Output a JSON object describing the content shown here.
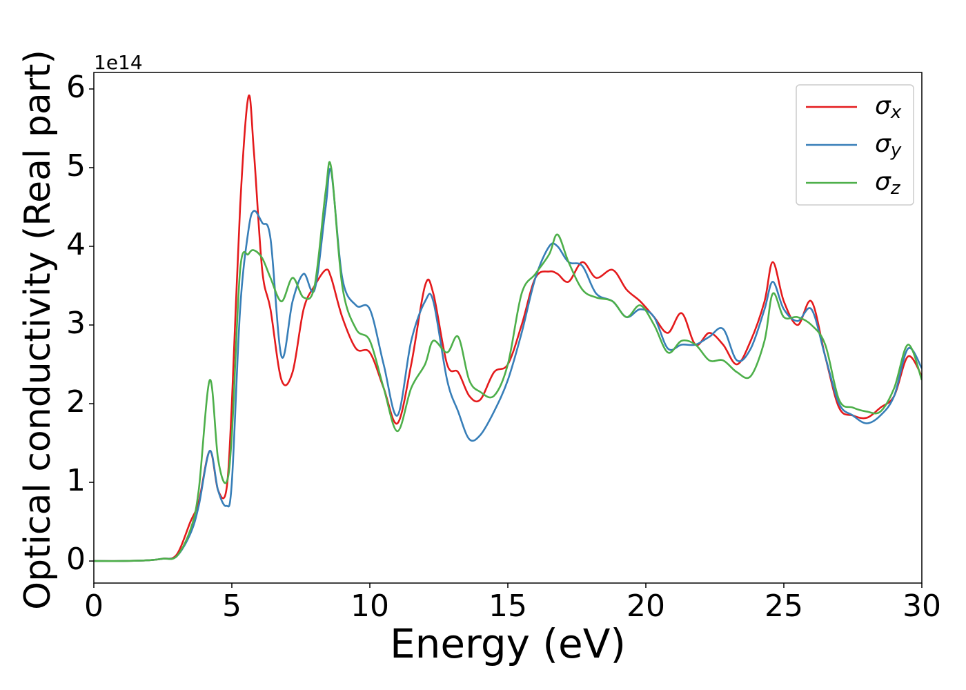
{
  "chart_data": {
    "type": "line",
    "xlabel": "Energy (eV)",
    "ylabel": "Optical conductivity (Real part)",
    "offset_text": "1e14",
    "x": [
      0,
      1,
      2,
      2.5,
      3,
      3.5,
      3.8,
      4.2,
      4.5,
      4.8,
      5,
      5.3,
      5.6,
      5.8,
      6.1,
      6.4,
      6.8,
      7.2,
      7.6,
      8,
      8.4,
      8.6,
      9,
      9.5,
      10,
      10.5,
      11,
      11.5,
      12,
      12.3,
      12.8,
      13.2,
      13.6,
      14,
      14.5,
      15,
      15.5,
      16,
      16.5,
      16.8,
      17.2,
      17.7,
      18.2,
      18.8,
      19.3,
      19.8,
      20.3,
      20.8,
      21.3,
      21.8,
      22.3,
      22.8,
      23.3,
      23.8,
      24.3,
      24.6,
      25,
      25.5,
      26,
      26.5,
      27,
      27.5,
      28,
      28.5,
      29,
      29.5,
      30
    ],
    "series": [
      {
        "name": "σx",
        "color": "#e41a1c",
        "values": [
          0,
          0,
          0.01,
          0.03,
          0.08,
          0.5,
          0.75,
          1.4,
          0.9,
          0.9,
          2.0,
          4.5,
          5.9,
          5.2,
          3.7,
          3.2,
          2.3,
          2.4,
          3.2,
          3.5,
          3.7,
          3.6,
          3.1,
          2.7,
          2.65,
          2.2,
          1.75,
          2.5,
          3.5,
          3.4,
          2.5,
          2.4,
          2.1,
          2.05,
          2.4,
          2.5,
          3.0,
          3.6,
          3.68,
          3.65,
          3.55,
          3.8,
          3.6,
          3.7,
          3.45,
          3.3,
          3.1,
          2.9,
          3.15,
          2.75,
          2.9,
          2.75,
          2.5,
          2.8,
          3.3,
          3.8,
          3.3,
          3.0,
          3.3,
          2.6,
          1.95,
          1.85,
          1.82,
          1.95,
          2.1,
          2.6,
          2.35
        ]
      },
      {
        "name": "σy",
        "color": "#377eb8",
        "values": [
          0,
          0,
          0.01,
          0.03,
          0.06,
          0.35,
          0.7,
          1.4,
          0.9,
          0.7,
          1.0,
          3.2,
          4.2,
          4.45,
          4.3,
          4.1,
          2.6,
          3.3,
          3.65,
          3.45,
          4.5,
          4.95,
          3.6,
          3.25,
          3.2,
          2.5,
          1.85,
          2.8,
          3.3,
          3.3,
          2.3,
          1.9,
          1.55,
          1.6,
          1.9,
          2.3,
          2.9,
          3.6,
          4.0,
          4.0,
          3.8,
          3.75,
          3.4,
          3.3,
          3.1,
          3.2,
          3.1,
          2.7,
          2.75,
          2.75,
          2.85,
          2.95,
          2.55,
          2.7,
          3.2,
          3.55,
          3.2,
          3.05,
          3.2,
          2.6,
          2.0,
          1.85,
          1.75,
          1.85,
          2.1,
          2.7,
          2.45
        ]
      },
      {
        "name": "σz",
        "color": "#4daf4a",
        "values": [
          0,
          0,
          0.01,
          0.03,
          0.06,
          0.4,
          0.9,
          2.3,
          1.3,
          1.0,
          1.6,
          3.7,
          3.9,
          3.95,
          3.85,
          3.6,
          3.3,
          3.6,
          3.35,
          3.5,
          4.7,
          5.0,
          3.5,
          2.95,
          2.8,
          2.2,
          1.65,
          2.2,
          2.5,
          2.8,
          2.65,
          2.85,
          2.3,
          2.15,
          2.1,
          2.5,
          3.4,
          3.65,
          3.9,
          4.15,
          3.8,
          3.45,
          3.35,
          3.3,
          3.1,
          3.25,
          3.0,
          2.65,
          2.8,
          2.75,
          2.55,
          2.55,
          2.4,
          2.35,
          2.8,
          3.4,
          3.1,
          3.1,
          3.0,
          2.75,
          2.05,
          1.95,
          1.9,
          1.9,
          2.2,
          2.75,
          2.3
        ]
      }
    ],
    "xlim": [
      0,
      30
    ],
    "xticks": [
      0,
      5,
      10,
      15,
      20,
      25,
      30
    ],
    "ylim": [
      -0.28,
      6.21
    ],
    "yticks": [
      0,
      1,
      2,
      3,
      4,
      5,
      6
    ],
    "legend": "upper right",
    "grid": false
  }
}
